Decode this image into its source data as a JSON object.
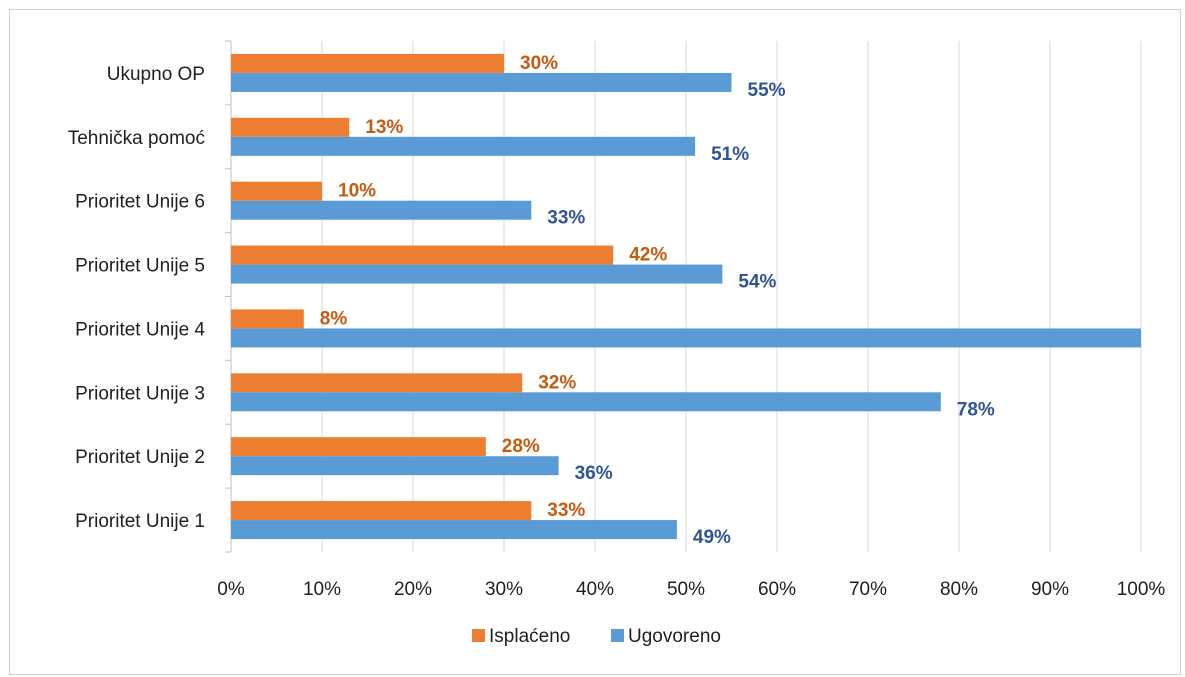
{
  "chart_data": {
    "type": "bar",
    "orientation": "horizontal",
    "categories": [
      "Prioritet Unije 1",
      "Prioritet Unije 2",
      "Prioritet Unije 3",
      "Prioritet Unije 4",
      "Prioritet Unije 5",
      "Prioritet Unije 6",
      "Tehnička pomoć",
      "Ukupno OP"
    ],
    "series": [
      {
        "name": "Ugovoreno",
        "color": "#5b9bd5",
        "label_color": "#2f5597",
        "values": [
          49,
          36,
          78,
          100,
          54,
          33,
          51,
          55
        ],
        "labels": [
          "49%",
          "36%",
          "78%",
          "",
          "54%",
          "33%",
          "51%",
          "55%"
        ]
      },
      {
        "name": "Isplaćeno",
        "color": "#ed7d31",
        "label_color": "#c55a11",
        "values": [
          33,
          28,
          32,
          8,
          42,
          10,
          13,
          30
        ],
        "labels": [
          "33%",
          "28%",
          "32%",
          "8%",
          "42%",
          "10%",
          "13%",
          "30%"
        ]
      }
    ],
    "xlim": [
      0,
      100
    ],
    "xticks": [
      "0%",
      "10%",
      "20%",
      "30%",
      "40%",
      "50%",
      "60%",
      "70%",
      "80%",
      "90%",
      "100%"
    ],
    "grid": true,
    "legend_position": "bottom",
    "legend": [
      "Isplaćeno",
      "Ugovoreno"
    ],
    "title": "",
    "xlabel": "",
    "ylabel": ""
  }
}
